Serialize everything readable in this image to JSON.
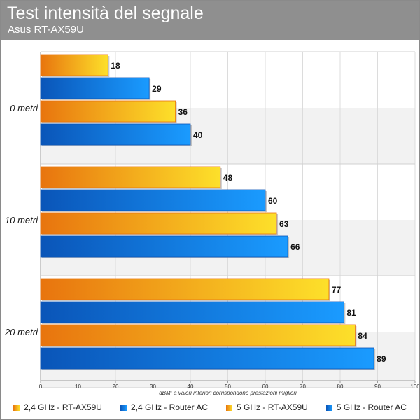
{
  "header": {
    "title": "Test intensità del segnale",
    "subtitle": "Asus RT-AX59U"
  },
  "chart_data": {
    "type": "bar",
    "orientation": "horizontal",
    "categories": [
      "0 metri",
      "10 metri",
      "20 metri"
    ],
    "series": [
      {
        "name": "2,4 GHz - RT-AX59U",
        "values": [
          18,
          48,
          77
        ],
        "color_light": "#fde02a",
        "color_dark": "#e8740e"
      },
      {
        "name": "2,4 GHz - Router AC",
        "values": [
          29,
          60,
          81
        ],
        "color_light": "#1a9bff",
        "color_dark": "#0a55b8"
      },
      {
        "name": "5 GHz - RT-AX59U",
        "values": [
          36,
          63,
          84
        ],
        "color_light": "#fde02a",
        "color_dark": "#e8740e"
      },
      {
        "name": "5 GHz - Router AC",
        "values": [
          40,
          66,
          89
        ],
        "color_light": "#1a9bff",
        "color_dark": "#0a55b8"
      }
    ],
    "xlim": [
      0,
      100
    ],
    "xticks": [
      0,
      10,
      20,
      30,
      40,
      50,
      60,
      70,
      80,
      90,
      100
    ],
    "xlabel": "dBM: a valori inferiori corrispondono prestazioni migliori",
    "grid": true,
    "legend_position": "bottom"
  }
}
